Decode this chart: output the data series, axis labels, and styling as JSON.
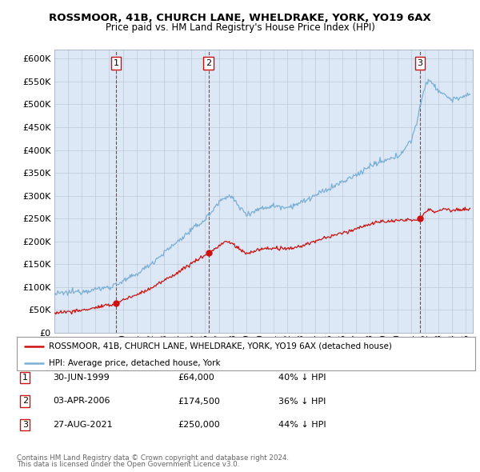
{
  "title": "ROSSMOOR, 41B, CHURCH LANE, WHELDRAKE, YORK, YO19 6AX",
  "subtitle": "Price paid vs. HM Land Registry's House Price Index (HPI)",
  "ylim": [
    0,
    620000
  ],
  "yticks": [
    0,
    50000,
    100000,
    150000,
    200000,
    250000,
    300000,
    350000,
    400000,
    450000,
    500000,
    550000,
    600000
  ],
  "xlim_start": 1995.0,
  "xlim_end": 2025.5,
  "bg_color": "#dce8f5",
  "plot_bg": "#ffffff",
  "grid_color": "#c0c8d8",
  "hpi_color": "#7bafd4",
  "price_color": "#cc1111",
  "sale_points": [
    {
      "date_num": 1999.496,
      "price": 64000,
      "label": "1",
      "date_str": "30-JUN-1999",
      "price_str": "£64,000",
      "pct_str": "40% ↓ HPI"
    },
    {
      "date_num": 2006.253,
      "price": 174500,
      "label": "2",
      "date_str": "03-APR-2006",
      "price_str": "£174,500",
      "pct_str": "36% ↓ HPI"
    },
    {
      "date_num": 2021.655,
      "price": 250000,
      "label": "3",
      "date_str": "27-AUG-2021",
      "price_str": "£250,000",
      "pct_str": "44% ↓ HPI"
    }
  ],
  "legend_line1": "ROSSMOOR, 41B, CHURCH LANE, WHELDRAKE, YORK, YO19 6AX (detached house)",
  "legend_line2": "HPI: Average price, detached house, York",
  "footer1": "Contains HM Land Registry data © Crown copyright and database right 2024.",
  "footer2": "This data is licensed under the Open Government Licence v3.0."
}
